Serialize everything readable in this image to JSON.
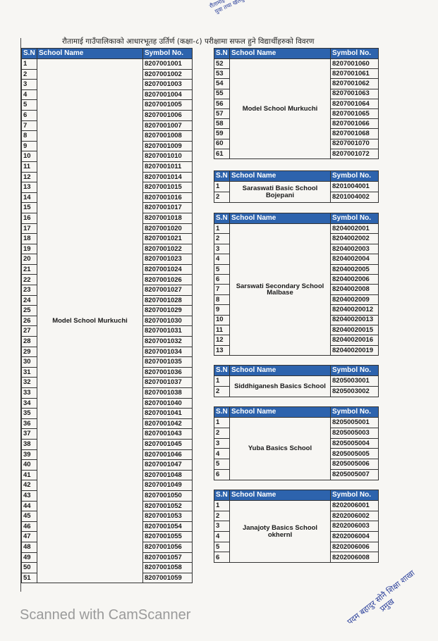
{
  "header": {
    "title": "रौतामाई गाउँपालिकाको आधारभूतह उर्तिर्ण (कक्षा-८) परीक्षामा सफल हुने विद्यार्थीहरुको विवरण",
    "stamp": "रौतामाई गाउँपालिका शिक्षा युवा तथा खेलकुद शाखा"
  },
  "columns": [
    "S.N",
    "School Name",
    "Symbol No."
  ],
  "tables": [
    {
      "school": "Model School Murkuchi",
      "rows": [
        [
          "1",
          "8207001001"
        ],
        [
          "2",
          "8207001002"
        ],
        [
          "3",
          "8207001003"
        ],
        [
          "4",
          "8207001004"
        ],
        [
          "5",
          "8207001005"
        ],
        [
          "6",
          "8207001006"
        ],
        [
          "7",
          "8207001007"
        ],
        [
          "8",
          "8207001008"
        ],
        [
          "9",
          "8207001009"
        ],
        [
          "10",
          "8207001010"
        ],
        [
          "11",
          "8207001011"
        ],
        [
          "12",
          "8207001014"
        ],
        [
          "13",
          "8207001015"
        ],
        [
          "14",
          "8207001016"
        ],
        [
          "15",
          "8207001017"
        ],
        [
          "16",
          "8207001018"
        ],
        [
          "17",
          "8207001020"
        ],
        [
          "18",
          "8207001021"
        ],
        [
          "19",
          "8207001022"
        ],
        [
          "20",
          "8207001023"
        ],
        [
          "21",
          "8207001024"
        ],
        [
          "22",
          "8207001026"
        ],
        [
          "23",
          "8207001027"
        ],
        [
          "24",
          "8207001028"
        ],
        [
          "25",
          "8207001029"
        ],
        [
          "26",
          "8207001030"
        ],
        [
          "27",
          "8207001031"
        ],
        [
          "28",
          "8207001032"
        ],
        [
          "29",
          "8207001034"
        ],
        [
          "30",
          "8207001035"
        ],
        [
          "31",
          "8207001036"
        ],
        [
          "32",
          "8207001037"
        ],
        [
          "33",
          "8207001038"
        ],
        [
          "34",
          "8207001040"
        ],
        [
          "35",
          "8207001041"
        ],
        [
          "36",
          "8207001042"
        ],
        [
          "37",
          "8207001043"
        ],
        [
          "38",
          "8207001045"
        ],
        [
          "39",
          "8207001046"
        ],
        [
          "40",
          "8207001047"
        ],
        [
          "41",
          "8207001048"
        ],
        [
          "42",
          "8207001049"
        ],
        [
          "43",
          "8207001050"
        ],
        [
          "44",
          "8207001052"
        ],
        [
          "45",
          "8207001053"
        ],
        [
          "46",
          "8207001054"
        ],
        [
          "47",
          "8207001055"
        ],
        [
          "48",
          "8207001056"
        ],
        [
          "49",
          "8207001057"
        ],
        [
          "50",
          "8207001058"
        ],
        [
          "51",
          "8207001059"
        ]
      ]
    },
    {
      "school": "Model School Murkuchi",
      "rows": [
        [
          "52",
          "8207001060"
        ],
        [
          "53",
          "8207001061"
        ],
        [
          "54",
          "8207001062"
        ],
        [
          "55",
          "8207001063"
        ],
        [
          "56",
          "8207001064"
        ],
        [
          "57",
          "8207001065"
        ],
        [
          "58",
          "8207001066"
        ],
        [
          "59",
          "8207001068"
        ],
        [
          "60",
          "8207001070"
        ],
        [
          "61",
          "8207001072"
        ]
      ]
    },
    {
      "school": "Saraswati Basic School Bojepani",
      "rows": [
        [
          "1",
          "8201004001"
        ],
        [
          "2",
          "8201004002"
        ]
      ]
    },
    {
      "school": "Sarswati Secondary School Malbase",
      "rows": [
        [
          "1",
          "8204002001"
        ],
        [
          "2",
          "8204002002"
        ],
        [
          "3",
          "8204002003"
        ],
        [
          "4",
          "8204002004"
        ],
        [
          "5",
          "8204002005"
        ],
        [
          "6",
          "8204002006"
        ],
        [
          "7",
          "8204002008"
        ],
        [
          "8",
          "8204002009"
        ],
        [
          "9",
          "82040020012"
        ],
        [
          "10",
          "82040020013"
        ],
        [
          "11",
          "82040020015"
        ],
        [
          "12",
          "82040020016"
        ],
        [
          "13",
          "82040020019"
        ]
      ]
    },
    {
      "school": "Siddhiganesh Basics School",
      "rows": [
        [
          "1",
          "8205003001"
        ],
        [
          "2",
          "8205003002"
        ]
      ]
    },
    {
      "school": "Yuba Basics School",
      "rows": [
        [
          "1",
          "8205005001"
        ],
        [
          "2",
          "8205005003"
        ],
        [
          "3",
          "8205005004"
        ],
        [
          "4",
          "8205005005"
        ],
        [
          "5",
          "8205005006"
        ],
        [
          "6",
          "8205005007"
        ]
      ]
    },
    {
      "school": "Janajoty Basics School okhernI",
      "rows": [
        [
          "1",
          "8202006001"
        ],
        [
          "2",
          "8202006002"
        ],
        [
          "3",
          "8202006003"
        ],
        [
          "4",
          "8202006004"
        ],
        [
          "5",
          "8202006006"
        ],
        [
          "6",
          "8202006008"
        ]
      ]
    }
  ],
  "footer": {
    "signature": "पदम बहादुर सोनै शिक्षा शाखा प्रमुख",
    "watermark": "Scanned with CamScanner"
  }
}
